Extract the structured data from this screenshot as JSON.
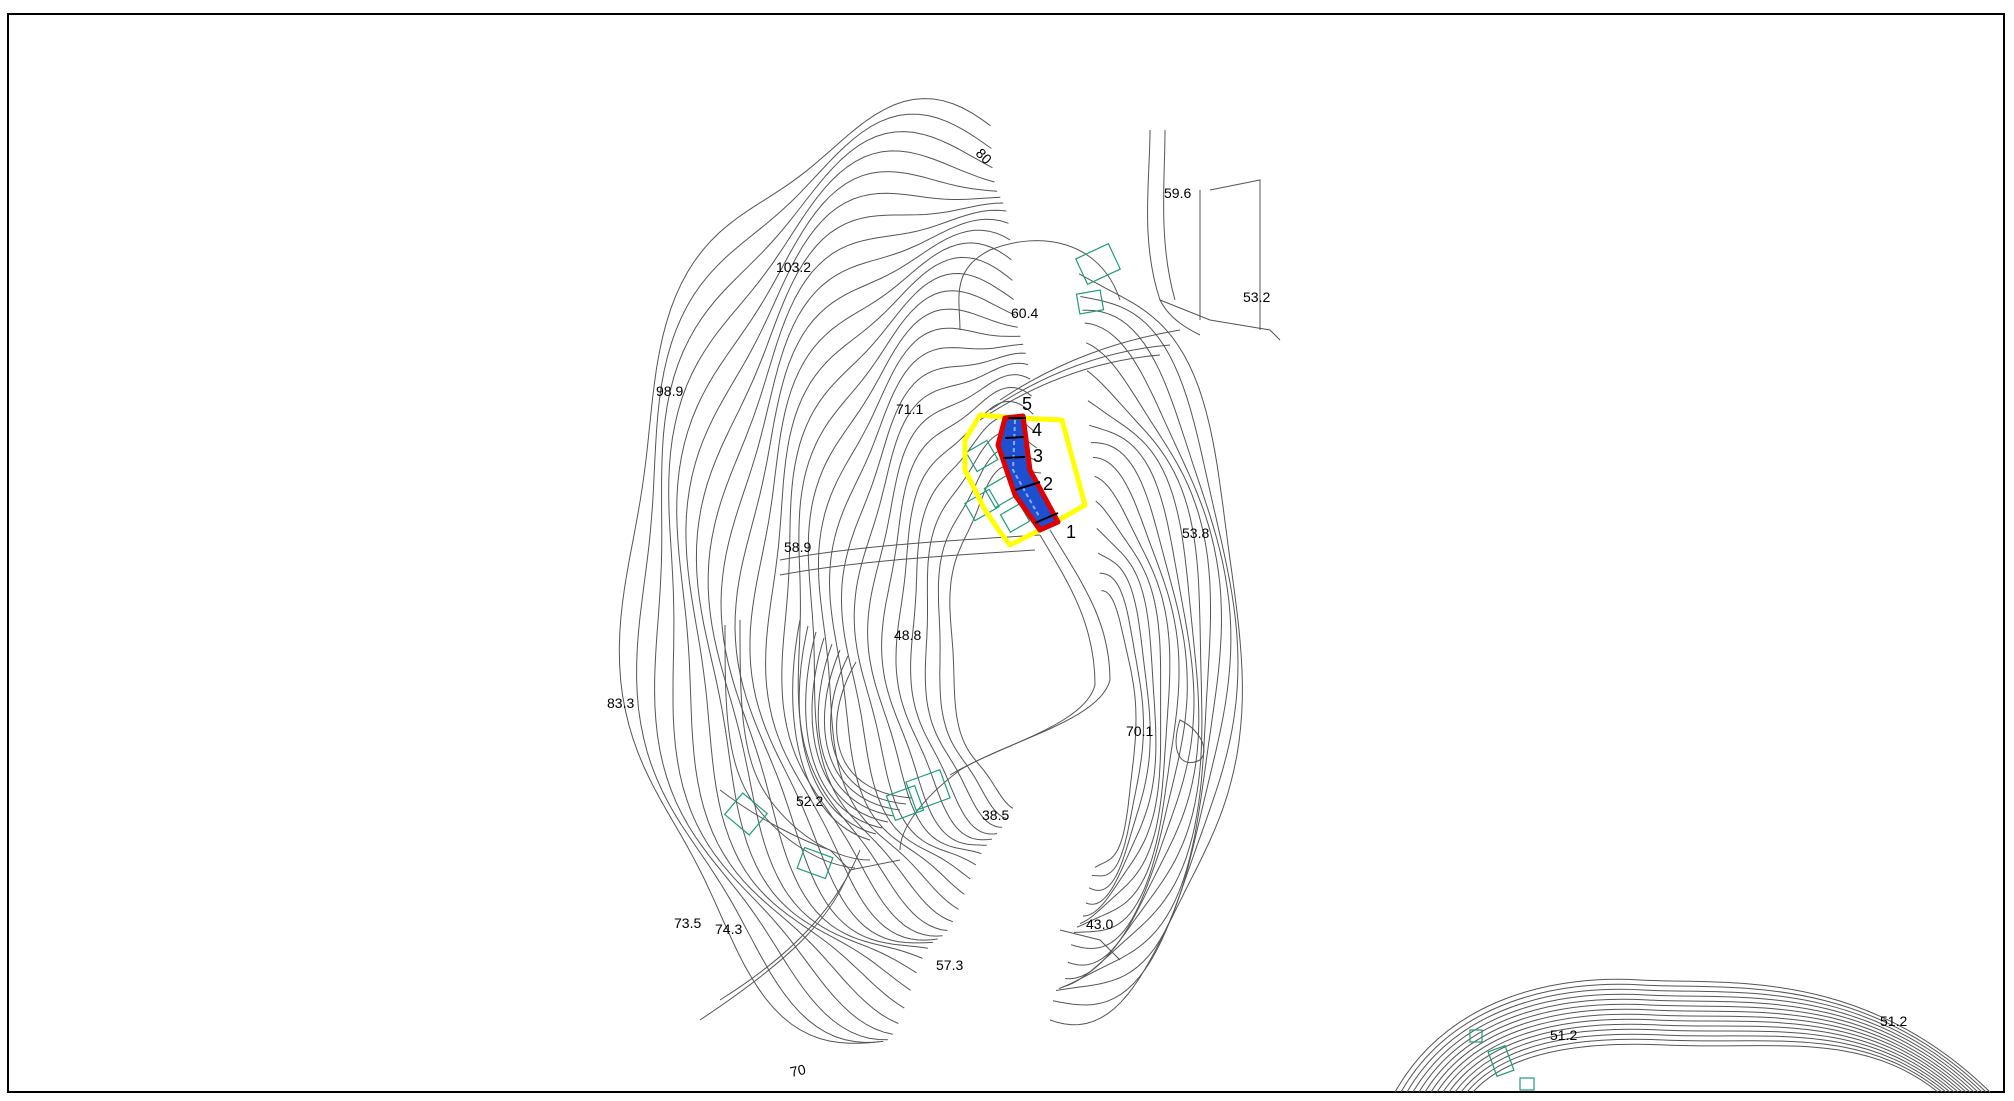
{
  "map": {
    "elevations": [
      "80",
      "59.6",
      "103.2",
      "53.2",
      "60.4",
      "98.9",
      "71.1",
      "53.8",
      "58.9",
      "48.8",
      "83.3",
      "70.1",
      "52.2",
      "38.5",
      "73.5",
      "74.3",
      "43.0",
      "57.3",
      "70",
      "51.2",
      "51.2"
    ],
    "sections": [
      "5",
      "4",
      "3",
      "2",
      "1"
    ],
    "colors": {
      "contour": "#555555",
      "building": "#1f9c7c",
      "survey_area": "#ffff00",
      "channel_outline": "#e00000",
      "channel_fill": "#1f4fd1",
      "frame": "#000000"
    }
  }
}
